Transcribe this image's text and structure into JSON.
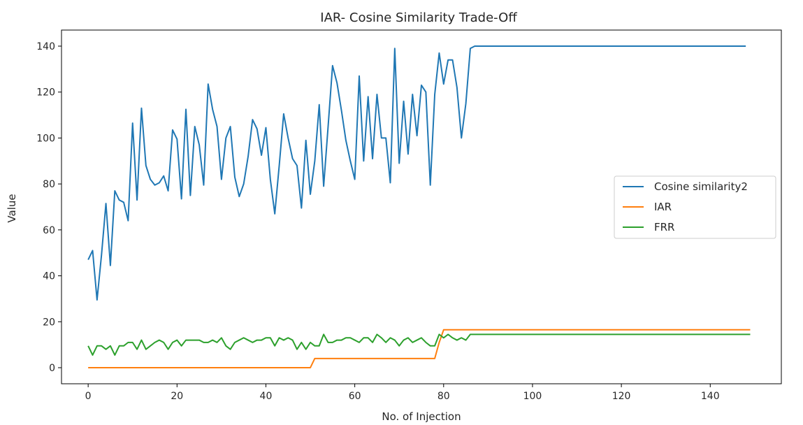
{
  "chart_data": {
    "type": "line",
    "title": "IAR- Cosine Similarity Trade-Off",
    "xlabel": "No. of Injection",
    "ylabel": "Value",
    "xlim": [
      -6,
      156
    ],
    "ylim": [
      -7,
      147
    ],
    "xticks": [
      0,
      20,
      40,
      60,
      80,
      100,
      120,
      140
    ],
    "yticks": [
      0,
      20,
      40,
      60,
      80,
      100,
      120,
      140
    ],
    "grid": false,
    "legend_position": "center-right",
    "series": [
      {
        "name": "Cosine similarity2",
        "color": "#1f77b4",
        "values": [
          47,
          51,
          29.5,
          49,
          71.5,
          44.5,
          77,
          73,
          72,
          64,
          106.5,
          73,
          113,
          88,
          82,
          79.5,
          80.5,
          83.5,
          77,
          103.5,
          99.5,
          73.5,
          112.5,
          75,
          105,
          97,
          79.5,
          123.5,
          112.5,
          105,
          82,
          100,
          105,
          83,
          74.5,
          80,
          92,
          108,
          104,
          92.5,
          104.5,
          82,
          67,
          88,
          110.5,
          100,
          91,
          88,
          69.5,
          99,
          75.5,
          90,
          114.5,
          79,
          105,
          131.5,
          124,
          112,
          99,
          90,
          82,
          127,
          90,
          118,
          91,
          119,
          100,
          100,
          80.5,
          139,
          89,
          116,
          93,
          119,
          101,
          123,
          120,
          79.5,
          119,
          137,
          123.5,
          134,
          134,
          122,
          100,
          115,
          139,
          140,
          140,
          140,
          140,
          140,
          140,
          140,
          140,
          140,
          140,
          140,
          140,
          140,
          140,
          140,
          140,
          140,
          140,
          140,
          140,
          140,
          140,
          140,
          140,
          140,
          140,
          140,
          140,
          140,
          140,
          140,
          140,
          140,
          140,
          140,
          140,
          140,
          140,
          140,
          140,
          140,
          140,
          140,
          140,
          140,
          140,
          140,
          140,
          140,
          140,
          140,
          140,
          140,
          140,
          140,
          140,
          140,
          140,
          140,
          140,
          140,
          140
        ]
      },
      {
        "name": "IAR",
        "color": "#ff7f0e",
        "values": [
          0,
          0,
          0,
          0,
          0,
          0,
          0,
          0,
          0,
          0,
          0,
          0,
          0,
          0,
          0,
          0,
          0,
          0,
          0,
          0,
          0,
          0,
          0,
          0,
          0,
          0,
          0,
          0,
          0,
          0,
          0,
          0,
          0,
          0,
          0,
          0,
          0,
          0,
          0,
          0,
          0,
          0,
          0,
          0,
          0,
          0,
          0,
          0,
          0,
          0,
          0,
          4,
          4,
          4,
          4,
          4,
          4,
          4,
          4,
          4,
          4,
          4,
          4,
          4,
          4,
          4,
          4,
          4,
          4,
          4,
          4,
          4,
          4,
          4,
          4,
          4,
          4,
          4,
          4,
          11,
          16.5,
          16.5,
          16.5,
          16.5,
          16.5,
          16.5,
          16.5,
          16.5,
          16.5,
          16.5,
          16.5,
          16.5,
          16.5,
          16.5,
          16.5,
          16.5,
          16.5,
          16.5,
          16.5,
          16.5,
          16.5,
          16.5,
          16.5,
          16.5,
          16.5,
          16.5,
          16.5,
          16.5,
          16.5,
          16.5,
          16.5,
          16.5,
          16.5,
          16.5,
          16.5,
          16.5,
          16.5,
          16.5,
          16.5,
          16.5,
          16.5,
          16.5,
          16.5,
          16.5,
          16.5,
          16.5,
          16.5,
          16.5,
          16.5,
          16.5,
          16.5,
          16.5,
          16.5,
          16.5,
          16.5,
          16.5,
          16.5,
          16.5,
          16.5,
          16.5,
          16.5,
          16.5,
          16.5,
          16.5,
          16.5,
          16.5,
          16.5,
          16.5,
          16.5,
          16.5
        ]
      },
      {
        "name": "FRR",
        "color": "#2ca02c",
        "values": [
          9.5,
          5.5,
          9.5,
          9.5,
          8,
          9.5,
          5.5,
          9.5,
          9.5,
          11,
          11,
          8,
          12,
          8,
          9.5,
          11,
          12,
          11,
          8,
          11,
          12,
          9.5,
          12,
          12,
          12,
          12,
          11,
          11,
          12,
          11,
          13,
          9.5,
          8,
          11,
          12,
          13,
          12,
          11,
          12,
          12,
          13,
          13,
          9.5,
          13,
          12,
          13,
          12,
          8,
          11,
          8,
          11,
          9.5,
          9.5,
          14.5,
          11,
          11,
          12,
          12,
          13,
          13,
          12,
          11,
          13,
          13,
          11,
          14.5,
          13,
          11,
          13,
          12,
          9.5,
          12,
          13,
          11,
          12,
          13,
          11,
          9.5,
          9.5,
          14.5,
          13,
          14.5,
          13,
          12,
          13,
          12,
          14.5,
          14.5,
          14.5,
          14.5,
          14.5,
          14.5,
          14.5,
          14.5,
          14.5,
          14.5,
          14.5,
          14.5,
          14.5,
          14.5,
          14.5,
          14.5,
          14.5,
          14.5,
          14.5,
          14.5,
          14.5,
          14.5,
          14.5,
          14.5,
          14.5,
          14.5,
          14.5,
          14.5,
          14.5,
          14.5,
          14.5,
          14.5,
          14.5,
          14.5,
          14.5,
          14.5,
          14.5,
          14.5,
          14.5,
          14.5,
          14.5,
          14.5,
          14.5,
          14.5,
          14.5,
          14.5,
          14.5,
          14.5,
          14.5,
          14.5,
          14.5,
          14.5,
          14.5,
          14.5,
          14.5,
          14.5,
          14.5,
          14.5,
          14.5,
          14.5,
          14.5,
          14.5,
          14.5,
          14.5
        ]
      }
    ]
  }
}
